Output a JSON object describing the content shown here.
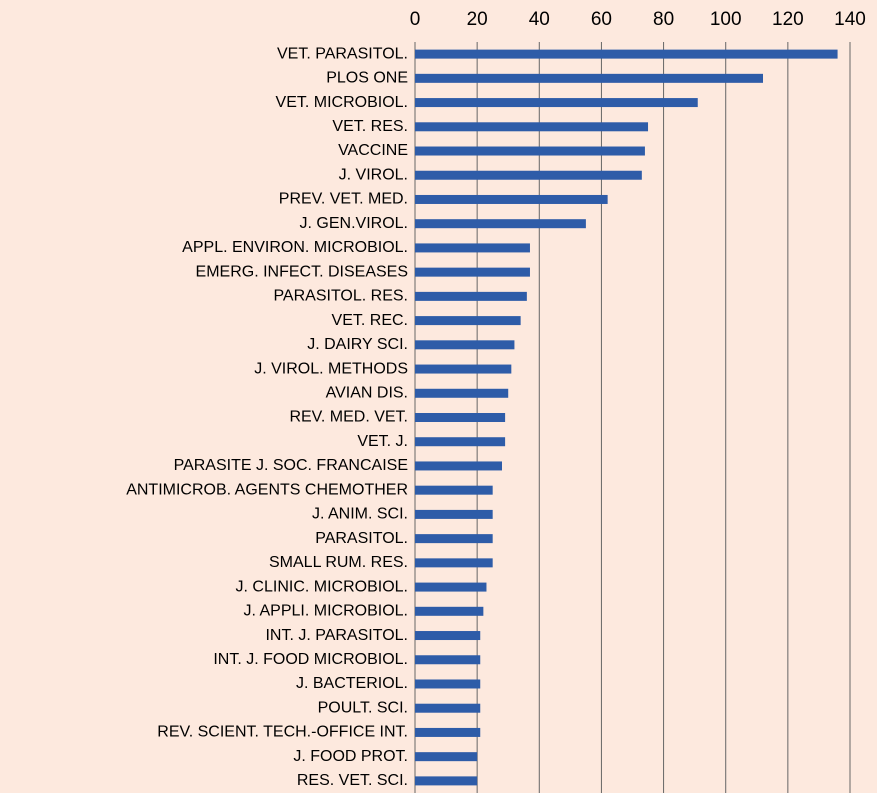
{
  "chart_data": {
    "type": "barh",
    "categories": [
      "VET. PARASITOL.",
      "PLOS ONE",
      "VET. MICROBIOL.",
      "VET. RES.",
      "VACCINE",
      "J. VIROL.",
      "PREV. VET. MED.",
      "J. GEN.VIROL.",
      "APPL. ENVIRON. MICROBIOL.",
      "EMERG. INFECT. DISEASES",
      "PARASITOL. RES.",
      "VET. REC.",
      "J. DAIRY SCI.",
      "J. VIROL. METHODS",
      "AVIAN DIS.",
      "REV. MED. VET.",
      "VET. J.",
      "PARASITE J. SOC. FRANCAISE",
      "ANTIMICROB. AGENTS CHEMOTHER",
      "J. ANIM. SCI.",
      "PARASITOL.",
      "SMALL RUM. RES.",
      "J. CLINIC. MICROBIOL.",
      "J. APPLI. MICROBIOL.",
      "INT. J. PARASITOL.",
      "INT. J. FOOD MICROBIOL.",
      "J. BACTERIOL.",
      "POULT. SCI.",
      "REV. SCIENT. TECH.-OFFICE INT.",
      "J. FOOD PROT.",
      "RES. VET. SCI."
    ],
    "values": [
      136,
      112,
      91,
      75,
      74,
      73,
      62,
      55,
      37,
      37,
      36,
      34,
      32,
      31,
      30,
      29,
      29,
      28,
      25,
      25,
      25,
      25,
      23,
      22,
      21,
      21,
      21,
      21,
      21,
      20,
      20
    ],
    "color": "#2e5ca8",
    "xlim": [
      0,
      140
    ],
    "xticks": [
      0,
      20,
      40,
      60,
      80,
      100,
      120,
      140
    ],
    "grid": true
  }
}
